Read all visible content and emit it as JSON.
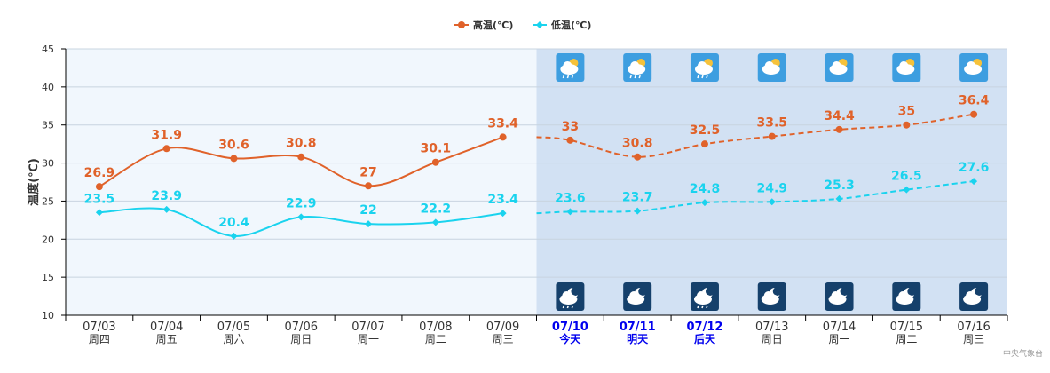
{
  "chart_data": {
    "type": "line",
    "ylabel": "温度(℃)",
    "ylim": [
      10,
      45
    ],
    "yticks": [
      10,
      15,
      20,
      25,
      30,
      35,
      40,
      45
    ],
    "grid": true,
    "legend_placement": "top-center",
    "categories": [
      "07/03",
      "07/04",
      "07/05",
      "07/06",
      "07/07",
      "07/08",
      "07/09",
      "07/10",
      "07/11",
      "07/12",
      "07/13",
      "07/14",
      "07/15",
      "07/16"
    ],
    "weekdays": [
      "周四",
      "周五",
      "周六",
      "周日",
      "周一",
      "周二",
      "周三",
      "今天",
      "明天",
      "后天",
      "周日",
      "周一",
      "周二",
      "周三"
    ],
    "highlighted_days": [
      7,
      8,
      9
    ],
    "forecast_start_index": 7,
    "series": [
      {
        "name": "高温(℃)",
        "color": "#e0622a",
        "values": [
          26.9,
          31.9,
          30.6,
          30.8,
          27,
          30.1,
          33.4,
          33,
          30.8,
          32.5,
          33.5,
          34.4,
          35,
          36.4
        ]
      },
      {
        "name": "低温(℃)",
        "color": "#1ad3ee",
        "values": [
          23.5,
          23.9,
          20.4,
          22.9,
          22,
          22.2,
          23.4,
          23.6,
          23.7,
          24.8,
          24.9,
          25.3,
          26.5,
          27.6
        ]
      }
    ],
    "day_icons": [
      "rain-sun-icon",
      "rain-sun-icon",
      "rain-sun-icon",
      "partly-cloudy-icon",
      "partly-cloudy-icon",
      "partly-cloudy-icon",
      "partly-cloudy-icon"
    ],
    "night_icons": [
      "rain-moon-icon",
      "cloudy-moon-icon",
      "rain-moon-icon",
      "cloudy-moon-icon",
      "cloudy-moon-icon",
      "cloudy-moon-icon",
      "cloudy-moon-icon"
    ]
  },
  "colors": {
    "history_bg": "#f1f7fd",
    "forecast_bg": "#d2e1f3",
    "highlight_text": "#0000ee",
    "axis": "#000000",
    "grid": "#c8d4e0",
    "day_icon_bg": "#3d9ee0",
    "night_icon_bg": "#15406b"
  },
  "credit": "中央气象台"
}
